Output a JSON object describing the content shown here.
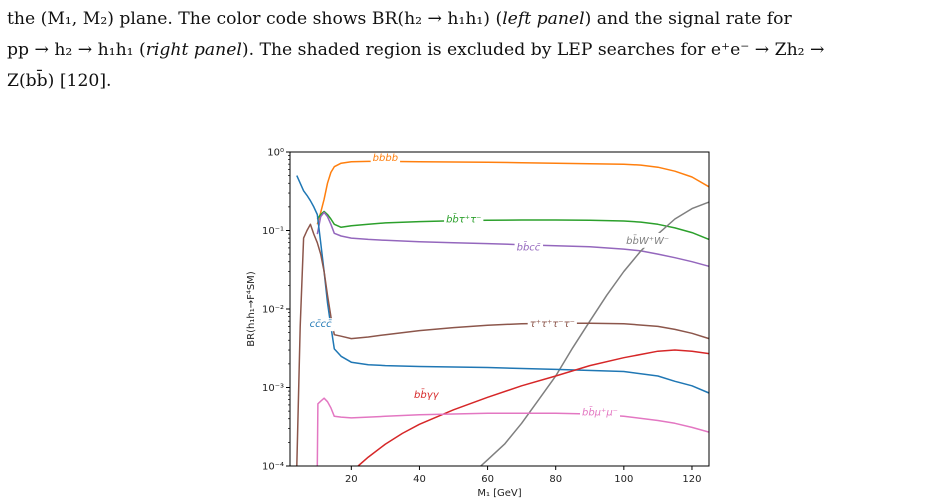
{
  "caption": {
    "line1": "the (M₁, M₂) plane. The color code shows BR(h₂ → h₁h₁) (",
    "line1_em1": "left panel",
    "line1_mid": ") and the signal rate for",
    "line2_start": "pp → h₂ → h₁h₁ (",
    "line2_em": "right panel",
    "line2_end": "). The shaded region is excluded by LEP searches for e⁺e⁻ → Zh₂ →",
    "line3": "Z(bb̄) [120]."
  },
  "chart_data": {
    "type": "line",
    "xlabel": "M₁ [GeV]",
    "ylabel": "BR(h₁h₁→F⁴SM)",
    "xlim": [
      2,
      125
    ],
    "ylim_log10": [
      -4,
      0
    ],
    "log_y": true,
    "grid": false,
    "x_ticks": [
      20,
      40,
      60,
      80,
      100,
      120
    ],
    "x_tick_labels": [
      "20",
      "40",
      "60",
      "80",
      "100",
      "120"
    ],
    "y_ticks": [
      -4,
      -3,
      -2,
      -1,
      0
    ],
    "y_tick_labels": [
      "10⁻⁴",
      "10⁻³",
      "10⁻²",
      "10⁻¹",
      "10⁰"
    ],
    "series": [
      {
        "name": "bb̄bb̄",
        "color": "#ff7f0e",
        "label_at": [
          30,
          0.85
        ],
        "x": [
          10,
          11,
          12,
          13,
          14,
          15,
          17,
          20,
          25,
          30,
          40,
          50,
          60,
          70,
          80,
          90,
          100,
          105,
          110,
          115,
          120,
          125
        ],
        "y": [
          0.12,
          0.17,
          0.25,
          0.4,
          0.55,
          0.65,
          0.72,
          0.75,
          0.76,
          0.76,
          0.75,
          0.745,
          0.74,
          0.73,
          0.72,
          0.71,
          0.7,
          0.68,
          0.64,
          0.57,
          0.48,
          0.36
        ]
      },
      {
        "name": "bb̄τ⁺τ⁻",
        "color": "#2ca02c",
        "label_at": [
          53,
          0.14
        ],
        "x": [
          10,
          11,
          12,
          13,
          14,
          15,
          17,
          20,
          25,
          30,
          40,
          50,
          60,
          70,
          80,
          90,
          100,
          105,
          110,
          115,
          120,
          125
        ],
        "y": [
          0.14,
          0.16,
          0.175,
          0.16,
          0.14,
          0.12,
          0.11,
          0.115,
          0.12,
          0.125,
          0.13,
          0.133,
          0.135,
          0.136,
          0.136,
          0.135,
          0.132,
          0.128,
          0.12,
          0.108,
          0.094,
          0.077
        ]
      },
      {
        "name": "bb̄cc̄",
        "color": "#9467bd",
        "label_at": [
          72,
          0.062
        ],
        "x": [
          10,
          11,
          12,
          13,
          14,
          15,
          17,
          20,
          25,
          30,
          40,
          50,
          60,
          70,
          80,
          90,
          100,
          105,
          110,
          115,
          120,
          125
        ],
        "y": [
          0.09,
          0.15,
          0.17,
          0.15,
          0.12,
          0.092,
          0.085,
          0.08,
          0.077,
          0.075,
          0.072,
          0.07,
          0.068,
          0.066,
          0.064,
          0.062,
          0.058,
          0.055,
          0.05,
          0.045,
          0.04,
          0.035
        ]
      },
      {
        "name": "bb̄W⁺W⁻",
        "color": "#7f7f7f",
        "label_at": [
          107,
          0.075
        ],
        "x": [
          58,
          60,
          65,
          70,
          75,
          80,
          85,
          90,
          95,
          100,
          105,
          110,
          115,
          120,
          125
        ],
        "y": [
          0.0001,
          0.00012,
          0.00019,
          0.00035,
          0.0007,
          0.0014,
          0.0032,
          0.007,
          0.015,
          0.03,
          0.055,
          0.09,
          0.14,
          0.19,
          0.23
        ]
      },
      {
        "name": "cc̄cc̄",
        "color": "#1f77b4",
        "label_at": [
          11,
          0.0065
        ],
        "x": [
          4,
          5,
          6,
          7,
          8,
          9,
          10,
          11,
          12,
          13,
          14,
          15,
          17,
          20,
          25,
          30,
          40,
          60,
          80,
          100,
          110,
          115,
          120,
          125
        ],
        "y": [
          0.5,
          0.4,
          0.32,
          0.28,
          0.24,
          0.2,
          0.16,
          0.07,
          0.03,
          0.012,
          0.006,
          0.0031,
          0.0025,
          0.0021,
          0.00195,
          0.0019,
          0.00185,
          0.0018,
          0.0017,
          0.0016,
          0.0014,
          0.0012,
          0.00105,
          0.00085
        ]
      },
      {
        "name": "τ⁺τ⁺τ⁻τ⁻",
        "color": "#8c564b",
        "label_at": [
          79,
          0.0065
        ],
        "x": [
          4,
          5,
          6,
          7,
          8,
          9,
          10,
          11,
          12,
          13,
          14,
          15,
          17,
          20,
          25,
          30,
          40,
          50,
          60,
          70,
          80,
          90,
          100,
          110,
          115,
          120,
          125
        ],
        "y": [
          0.0001,
          0.006,
          0.08,
          0.1,
          0.12,
          0.09,
          0.07,
          0.05,
          0.03,
          0.015,
          0.008,
          0.0047,
          0.0045,
          0.0042,
          0.0044,
          0.0047,
          0.0053,
          0.0058,
          0.0062,
          0.0065,
          0.0066,
          0.0066,
          0.0065,
          0.006,
          0.0055,
          0.0049,
          0.0042
        ]
      },
      {
        "name": "bb̄γγ",
        "color": "#d62728",
        "label_at": [
          42,
          0.00082
        ],
        "x": [
          22,
          25,
          30,
          35,
          40,
          50,
          60,
          70,
          80,
          90,
          100,
          110,
          115,
          120,
          125
        ],
        "y": [
          0.0001,
          0.00013,
          0.00019,
          0.00026,
          0.00034,
          0.00052,
          0.00075,
          0.00105,
          0.0014,
          0.0019,
          0.0024,
          0.0029,
          0.003,
          0.0029,
          0.0027
        ]
      },
      {
        "name": "bb̄μ⁺μ⁻",
        "color": "#e377c2",
        "label_at": [
          93,
          0.00049
        ],
        "x": [
          10,
          10.2,
          11,
          12,
          13,
          14,
          15,
          17,
          20,
          25,
          30,
          40,
          50,
          60,
          70,
          80,
          90,
          100,
          110,
          115,
          120,
          125
        ],
        "y": [
          0.0001,
          0.00062,
          0.00067,
          0.00073,
          0.00066,
          0.00055,
          0.00043,
          0.00042,
          0.00041,
          0.00042,
          0.00043,
          0.00045,
          0.00046,
          0.00047,
          0.00047,
          0.00047,
          0.00046,
          0.00043,
          0.00038,
          0.00035,
          0.00031,
          0.00027
        ]
      }
    ]
  }
}
